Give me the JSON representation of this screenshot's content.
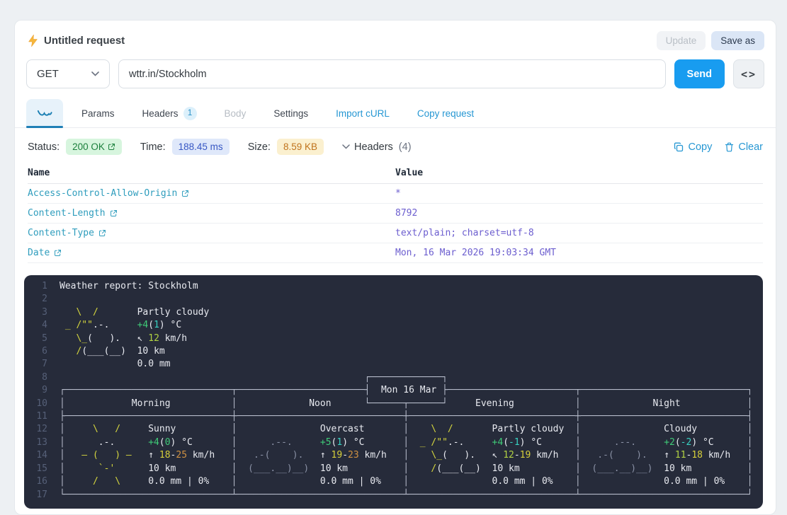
{
  "request": {
    "title": "Untitled request",
    "update_label": "Update",
    "save_as_label": "Save as",
    "method": "GET",
    "url": "wttr.in/Stockholm",
    "send_label": "Send",
    "code_label": "<>"
  },
  "tabs": {
    "params": "Params",
    "headers": "Headers",
    "headers_badge": "1",
    "body": "Body",
    "settings": "Settings",
    "import_curl": "Import cURL",
    "copy_request": "Copy request"
  },
  "response_meta": {
    "status_label": "Status:",
    "status_value": "200 OK",
    "time_label": "Time:",
    "time_value": "188.45 ms",
    "size_label": "Size:",
    "size_value": "8.59 KB",
    "headers_toggle": "Headers",
    "headers_count": "(4)",
    "copy_label": "Copy",
    "clear_label": "Clear"
  },
  "headers_table": {
    "columns": [
      "Name",
      "Value"
    ],
    "rows": [
      {
        "name": "Access-Control-Allow-Origin",
        "value": "*"
      },
      {
        "name": "Content-Length",
        "value": "8792"
      },
      {
        "name": "Content-Type",
        "value": "text/plain; charset=utf-8"
      },
      {
        "name": "Date",
        "value": "Mon, 16 Mar 2026 19:03:34 GMT"
      }
    ]
  },
  "colors": {
    "accent_blue": "#189cf0",
    "link_blue": "#2697d3",
    "status_green": "#1b7f3c",
    "time_blue": "#3757c4",
    "size_amber": "#c0731d",
    "header_name": "#2f9dbd",
    "header_value": "#6c5ecf"
  },
  "terminal": {
    "palette": {
      "w": "#e8eaf0",
      "b": "#b8bdcc",
      "y": "#d4d53e",
      "yg": "#b2d343",
      "y2": "#d6cf3a",
      "o": "#cf9142",
      "g": "#3fcb78",
      "c": "#38d2c3",
      "gr": "#8990a4"
    },
    "lines": [
      {
        "n": "1",
        "seg": [
          [
            "w",
            "Weather report: Stockholm"
          ]
        ]
      },
      {
        "n": "2",
        "seg": []
      },
      {
        "n": "3",
        "seg": [
          [
            "y",
            "   \\  /"
          ],
          [
            "w",
            "       Partly cloudy"
          ]
        ]
      },
      {
        "n": "4",
        "seg": [
          [
            "y",
            " _ /\"\""
          ],
          [
            "w",
            ".-.     "
          ],
          [
            "g",
            "+4"
          ],
          [
            "w",
            "("
          ],
          [
            "c",
            "1"
          ],
          [
            "w",
            ") °C"
          ]
        ]
      },
      {
        "n": "5",
        "seg": [
          [
            "y",
            "   \\_"
          ],
          [
            "w",
            "(   ).   "
          ],
          [
            "w",
            "↖ "
          ],
          [
            "yg",
            "12"
          ],
          [
            "w",
            " km/h"
          ]
        ]
      },
      {
        "n": "6",
        "seg": [
          [
            "y",
            "   /"
          ],
          [
            "w",
            "(___(__)  "
          ],
          [
            "w",
            "10 km"
          ]
        ]
      },
      {
        "n": "7",
        "seg": [
          [
            "w",
            "              0.0 mm"
          ]
        ]
      },
      {
        "n": "8",
        "seg": [
          [
            "b",
            "                                                       ┌─────────────┐"
          ]
        ]
      },
      {
        "n": "9",
        "seg": [
          [
            "b",
            "┌──────────────────────────────┬───────────────────────┤"
          ],
          [
            "w",
            "  Mon 16 Mar "
          ],
          [
            "b",
            "├───────────────────────┬──────────────────────────────┐"
          ]
        ]
      },
      {
        "n": "10",
        "seg": [
          [
            "b",
            "│"
          ],
          [
            "w",
            "            Morning           "
          ],
          [
            "b",
            "│"
          ],
          [
            "w",
            "             Noon      "
          ],
          [
            "b",
            "└──────┬──────┘"
          ],
          [
            "w",
            "     Evening           "
          ],
          [
            "b",
            "│"
          ],
          [
            "w",
            "             Night            "
          ],
          [
            "b",
            "│"
          ]
        ]
      },
      {
        "n": "11",
        "seg": [
          [
            "b",
            "├──────────────────────────────┼──────────────────────────────┼──────────────────────────────┼──────────────────────────────┤"
          ]
        ]
      },
      {
        "n": "12",
        "seg": [
          [
            "b",
            "│"
          ],
          [
            "y",
            "     \\   /    "
          ],
          [
            "w",
            " Sunny          "
          ],
          [
            "b",
            "│"
          ],
          [
            "w",
            "               Overcast       "
          ],
          [
            "b",
            "│"
          ],
          [
            "y",
            "    \\  /"
          ],
          [
            "w",
            "       Partly cloudy  "
          ],
          [
            "b",
            "│"
          ],
          [
            "w",
            "               Cloudy         "
          ],
          [
            "b",
            "│"
          ]
        ]
      },
      {
        "n": "13",
        "seg": [
          [
            "b",
            "│"
          ],
          [
            "w",
            "      .-.      "
          ],
          [
            "g",
            "+4"
          ],
          [
            "w",
            "("
          ],
          [
            "g",
            "0"
          ],
          [
            "w",
            ") °C       "
          ],
          [
            "b",
            "│"
          ],
          [
            "gr",
            "      .--.     "
          ],
          [
            "g",
            "+5"
          ],
          [
            "w",
            "("
          ],
          [
            "c",
            "1"
          ],
          [
            "w",
            ") °C       "
          ],
          [
            "b",
            "│"
          ],
          [
            "y",
            "  _ /\"\""
          ],
          [
            "w",
            ".-.     "
          ],
          [
            "g",
            "+4"
          ],
          [
            "w",
            "("
          ],
          [
            "c",
            "-1"
          ],
          [
            "w",
            ") °C      "
          ],
          [
            "b",
            "│"
          ],
          [
            "gr",
            "      .--.     "
          ],
          [
            "g",
            "+2"
          ],
          [
            "w",
            "("
          ],
          [
            "c",
            "-2"
          ],
          [
            "w",
            ") °C      "
          ],
          [
            "b",
            "│"
          ]
        ]
      },
      {
        "n": "14",
        "seg": [
          [
            "b",
            "│"
          ],
          [
            "y",
            "   ― (   ) ―   "
          ],
          [
            "w",
            "↑ "
          ],
          [
            "y2",
            "18"
          ],
          [
            "w",
            "-"
          ],
          [
            "o",
            "25"
          ],
          [
            "w",
            " km/h   "
          ],
          [
            "b",
            "│"
          ],
          [
            "gr",
            "   .-(    ).   "
          ],
          [
            "w",
            "↑ "
          ],
          [
            "y2",
            "19"
          ],
          [
            "w",
            "-"
          ],
          [
            "o",
            "23"
          ],
          [
            "w",
            " km/h   "
          ],
          [
            "b",
            "│"
          ],
          [
            "y",
            "    \\_"
          ],
          [
            "w",
            "(   ).   "
          ],
          [
            "w",
            "↖ "
          ],
          [
            "yg",
            "12"
          ],
          [
            "w",
            "-"
          ],
          [
            "y2",
            "19"
          ],
          [
            "w",
            " km/h   "
          ],
          [
            "b",
            "│"
          ],
          [
            "gr",
            "   .-(    ).   "
          ],
          [
            "w",
            "↑ "
          ],
          [
            "yg",
            "11"
          ],
          [
            "w",
            "-"
          ],
          [
            "y2",
            "18"
          ],
          [
            "w",
            " km/h   "
          ],
          [
            "b",
            "│"
          ]
        ]
      },
      {
        "n": "15",
        "seg": [
          [
            "b",
            "│"
          ],
          [
            "y",
            "      `-'      "
          ],
          [
            "w",
            "10 km          "
          ],
          [
            "b",
            "│"
          ],
          [
            "gr",
            "  (___.__)__)  "
          ],
          [
            "w",
            "10 km          "
          ],
          [
            "b",
            "│"
          ],
          [
            "y",
            "    /"
          ],
          [
            "w",
            "(___(__)  "
          ],
          [
            "w",
            "10 km          "
          ],
          [
            "b",
            "│"
          ],
          [
            "gr",
            "  (___.__)__)  "
          ],
          [
            "w",
            "10 km          "
          ],
          [
            "b",
            "│"
          ]
        ]
      },
      {
        "n": "16",
        "seg": [
          [
            "b",
            "│"
          ],
          [
            "y",
            "     /   \\     "
          ],
          [
            "w",
            "0.0 mm | 0%    "
          ],
          [
            "b",
            "│"
          ],
          [
            "w",
            "               0.0 mm | 0%    "
          ],
          [
            "b",
            "│"
          ],
          [
            "w",
            "               0.0 mm | 0%    "
          ],
          [
            "b",
            "│"
          ],
          [
            "w",
            "               0.0 mm | 0%    "
          ],
          [
            "b",
            "│"
          ]
        ]
      },
      {
        "n": "17",
        "seg": [
          [
            "b",
            "└──────────────────────────────┴──────────────────────────────┴──────────────────────────────┴──────────────────────────────┘"
          ]
        ]
      }
    ]
  }
}
